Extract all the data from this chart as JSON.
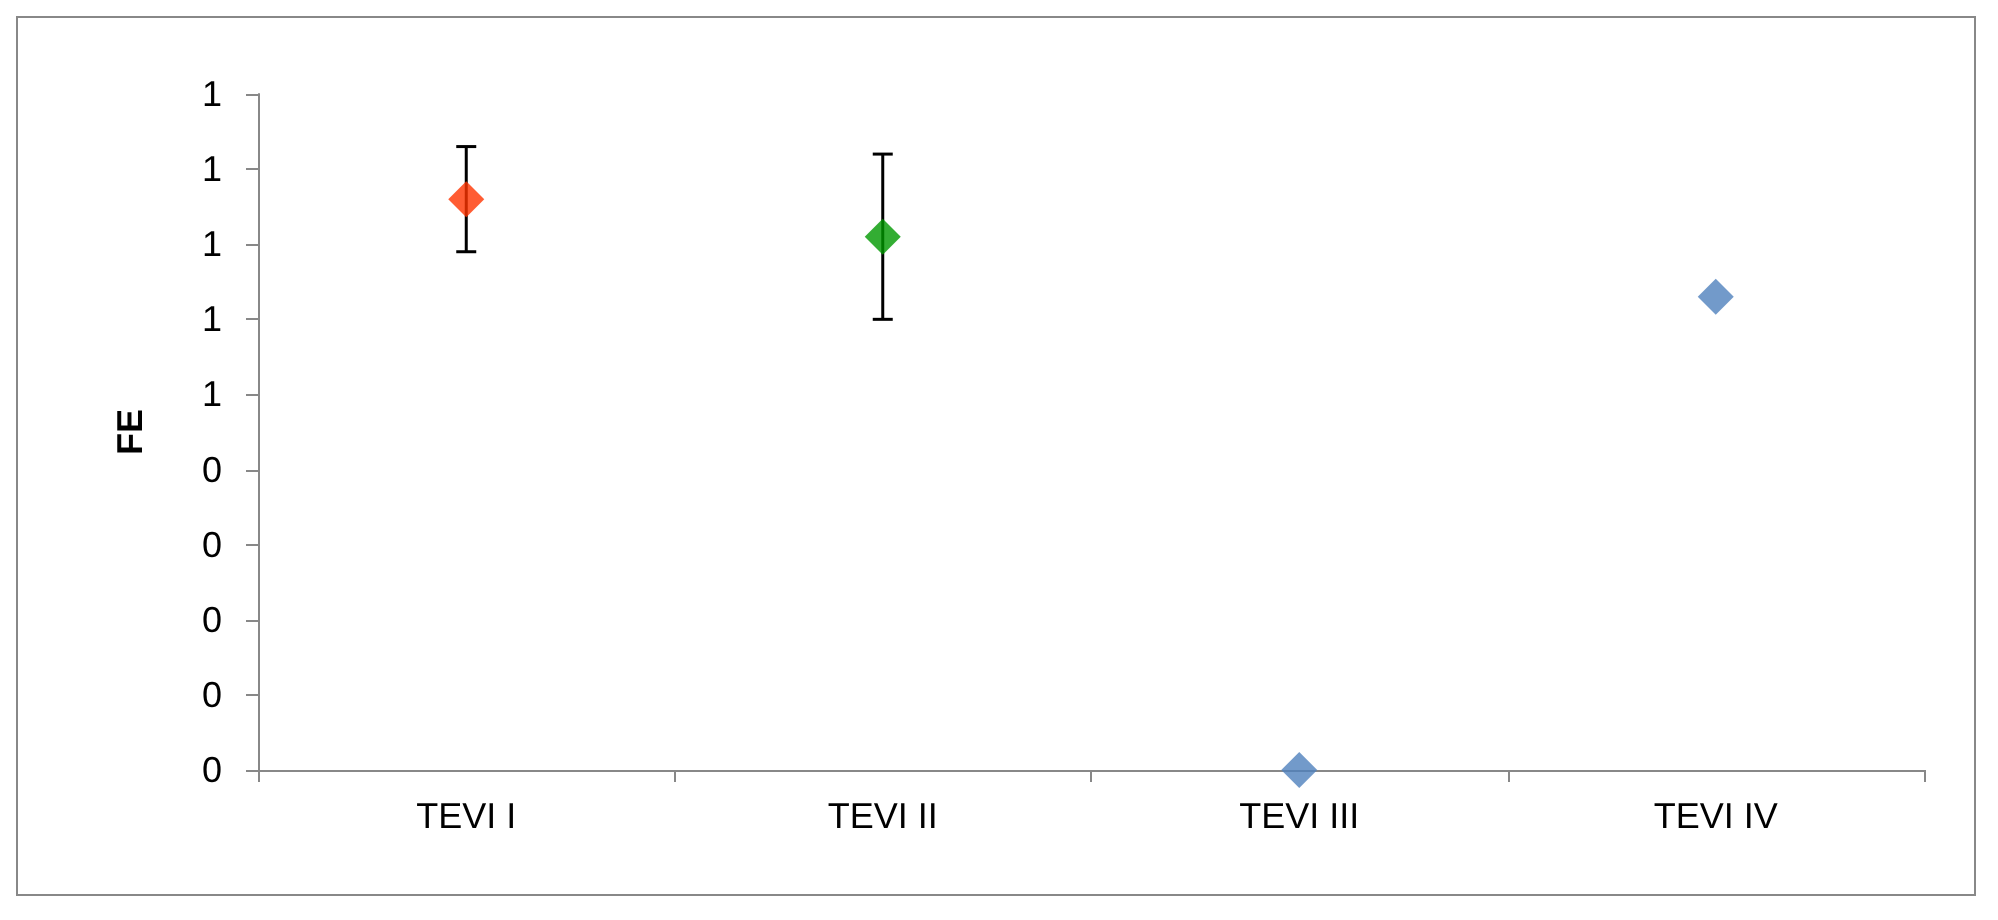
{
  "chart_data": {
    "type": "scatter",
    "ylabel": "FE",
    "categories": [
      "TEVI I",
      "TEVI II",
      "TEVI III",
      "TEVI IV"
    ],
    "values": [
      0.76,
      0.71,
      0,
      0.63
    ],
    "colors": [
      "#ff3300",
      "#009900",
      "#4f81bd",
      "#4f81bd"
    ],
    "errors": [
      [
        0.69,
        0.83
      ],
      [
        0.6,
        0.82
      ],
      null,
      null
    ],
    "ylim": [
      0,
      0.9
    ],
    "yticks": [
      {
        "value": 0,
        "label": "0"
      },
      {
        "value": 0.1,
        "label": "0"
      },
      {
        "value": 0.2,
        "label": "0"
      },
      {
        "value": 0.3,
        "label": "0"
      },
      {
        "value": 0.4,
        "label": "0"
      },
      {
        "value": 0.5,
        "label": "1"
      },
      {
        "value": 0.6,
        "label": "1"
      },
      {
        "value": 0.7,
        "label": "1"
      },
      {
        "value": 0.8,
        "label": "1"
      },
      {
        "value": 0.9,
        "label": "1"
      }
    ],
    "marker": "diamond"
  }
}
